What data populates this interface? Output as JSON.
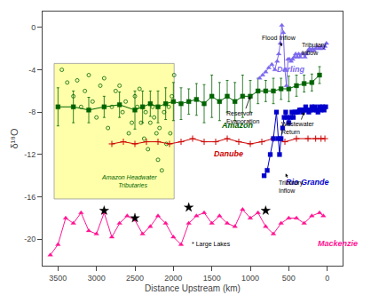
{
  "chart_data": {
    "type": "line",
    "xlabel": "Distance Upstream (km)",
    "ylabel": "δ¹⁸O",
    "xlim": [
      3700,
      -200
    ],
    "ylim": [
      -22.5,
      1.5
    ],
    "xticks": [
      3500,
      3000,
      2500,
      2000,
      1500,
      1000,
      500,
      0
    ],
    "yticks": [
      0,
      -4,
      -8,
      -12,
      -16,
      -20
    ],
    "grid": false,
    "region": {
      "x": [
        1990,
        3550
      ],
      "y": [
        -16.2,
        -3.4
      ],
      "color": "#ffffaa",
      "edge_color": "#999999"
    },
    "series": [
      {
        "name": "Amazon Headwater\n    Tributaries",
        "type": "scatter",
        "marker": "circle-open",
        "color": "#006400",
        "x": [
          3450,
          3380,
          3300,
          3250,
          3200,
          3150,
          3100,
          3050,
          3000,
          2950,
          2900,
          2850,
          2800,
          2750,
          2700,
          2660,
          2620,
          2580,
          2540,
          2500,
          2470,
          2440,
          2420,
          2400,
          2380,
          2360,
          2330,
          2300,
          2270,
          2250,
          2220,
          2200,
          2180,
          2150,
          2120,
          2090,
          2060,
          2040,
          2020,
          1990
        ],
        "values": [
          -4.0,
          -5.2,
          -6.5,
          -5.0,
          -7.5,
          -6.0,
          -4.5,
          -7.0,
          -8.5,
          -5.5,
          -4.8,
          -9.5,
          -7.5,
          -6.0,
          -5.5,
          -8.0,
          -7.0,
          -10.0,
          -9.0,
          -6.5,
          -7.5,
          -5.8,
          -9.0,
          -7.5,
          -10.5,
          -8.0,
          -11.5,
          -9.0,
          -7.5,
          -8.5,
          -10.0,
          -12.5,
          -9.5,
          -13.5,
          -8.0,
          -11.0,
          -7.5,
          -10.0,
          -6.5,
          -4.5
        ],
        "label_x": 2580,
        "label_y": -14.5
      },
      {
        "name": "Amazon",
        "type": "line",
        "marker": "square",
        "color": "#006400",
        "x": [
          3500,
          3300,
          3100,
          2900,
          2700,
          2500,
          2400,
          2300,
          2200,
          2100,
          2000,
          1900,
          1800,
          1700,
          1600,
          1500,
          1400,
          1300,
          1200,
          1100,
          1000,
          900,
          800,
          700,
          600,
          500,
          400,
          300,
          200,
          100
        ],
        "values": [
          -7.5,
          -7.5,
          -7.8,
          -7.5,
          -7.3,
          -7.8,
          -7.5,
          -7.2,
          -7.5,
          -7.2,
          -7.0,
          -7.2,
          -7.0,
          -6.8,
          -7.2,
          -6.5,
          -7.0,
          -6.5,
          -7.0,
          -6.5,
          -6.5,
          -6.0,
          -6.0,
          -6.0,
          -5.8,
          -5.8,
          -5.5,
          -5.3,
          -5.2,
          -4.5
        ],
        "errors": [
          1.8,
          1.5,
          1.2,
          1.0,
          1.2,
          1.8,
          1.5,
          1.2,
          1.5,
          1.5,
          1.8,
          1.5,
          1.2,
          1.5,
          1.8,
          2.0,
          1.8,
          1.5,
          1.8,
          2.0,
          1.5,
          1.2,
          1.0,
          1.2,
          1.0,
          1.2,
          1.0,
          0.8,
          0.8,
          0.8
        ],
        "label_x": 1400,
        "label_y": -9.8
      },
      {
        "name": "Danube",
        "type": "line",
        "marker": "cross",
        "color": "#cc0000",
        "x": [
          2800,
          2650,
          2500,
          2350,
          2200,
          2050,
          1900,
          1750,
          1600,
          1450,
          1300,
          1150,
          1000,
          850,
          700,
          550,
          400,
          250,
          150,
          80,
          30
        ],
        "values": [
          -11.0,
          -10.8,
          -11.0,
          -10.8,
          -10.8,
          -11.0,
          -10.8,
          -10.5,
          -10.8,
          -10.8,
          -10.5,
          -10.8,
          -11.0,
          -10.8,
          -10.5,
          -10.8,
          -10.5,
          -10.5,
          -10.5,
          -10.5,
          -10.5
        ],
        "label_x": 1500,
        "label_y": -12.5
      },
      {
        "name": "Rio Grande",
        "type": "line",
        "marker": "square",
        "color": "#0000cc",
        "x": [
          820,
          780,
          740,
          700,
          660,
          640,
          620,
          600,
          580,
          560,
          540,
          520,
          500,
          480,
          460,
          440,
          420,
          400,
          380,
          360,
          340,
          320,
          300,
          280,
          260,
          240,
          220,
          200,
          180,
          160,
          140,
          120,
          100,
          80,
          60,
          40,
          20
        ],
        "values": [
          -14.0,
          -13.5,
          -12.0,
          -10.5,
          -8.0,
          -10.5,
          -12.0,
          -10.5,
          -9.5,
          -8.5,
          -8.0,
          -8.5,
          -9.0,
          -8.5,
          -8.0,
          -8.5,
          -8.0,
          -8.0,
          -8.0,
          -7.8,
          -7.8,
          -8.0,
          -7.8,
          -7.5,
          -7.8,
          -8.0,
          -7.8,
          -7.5,
          -7.8,
          -7.5,
          -7.8,
          -8.0,
          -7.5,
          -7.8,
          -7.5,
          -7.8,
          -7.5
        ],
        "label_x": 560,
        "label_y": -15.2
      },
      {
        "name": "Darling",
        "type": "line",
        "marker": "triangle-up",
        "color": "#7B68EE",
        "x": [
          880,
          840,
          800,
          760,
          720,
          680,
          650,
          630,
          610,
          590,
          570,
          550,
          530,
          510,
          490,
          470,
          450,
          430,
          410,
          390,
          370,
          350,
          330,
          310,
          290,
          270,
          250,
          230,
          210,
          190,
          170,
          150,
          130,
          110,
          90,
          70,
          50,
          30,
          10
        ],
        "values": [
          -4.8,
          -4.5,
          -4.2,
          -3.8,
          -3.5,
          -4.0,
          -3.2,
          -2.5,
          -1.5,
          0.2,
          -0.5,
          -4.0,
          -5.5,
          -3.0,
          -3.0,
          -3.2,
          -3.0,
          -2.8,
          -2.5,
          -2.8,
          -2.5,
          -2.8,
          -2.5,
          -2.5,
          -2.8,
          -2.5,
          -2.2,
          -2.0,
          -2.2,
          -2.0,
          -2.2,
          -2.0,
          -1.8,
          -2.0,
          -2.0,
          -1.8,
          -2.0,
          -1.8,
          -1.5
        ],
        "label_x": 680,
        "label_y": -4.5
      },
      {
        "name": "Mackenzie",
        "type": "line",
        "marker": "triangle-up",
        "color": "#ff1493",
        "x": [
          3600,
          3500,
          3400,
          3300,
          3200,
          3100,
          3000,
          2900,
          2800,
          2700,
          2600,
          2500,
          2400,
          2300,
          2200,
          2100,
          2000,
          1900,
          1800,
          1700,
          1600,
          1500,
          1400,
          1300,
          1200,
          1100,
          1000,
          900,
          800,
          700,
          600,
          500,
          400,
          300,
          200,
          100,
          50
        ],
        "values": [
          -21.5,
          -20.5,
          -18.0,
          -18.5,
          -17.5,
          -19.2,
          -19.5,
          -17.5,
          -19.8,
          -18.5,
          -17.8,
          -18.2,
          -19.5,
          -18.8,
          -17.8,
          -18.5,
          -19.8,
          -20.5,
          -18.5,
          -17.8,
          -17.5,
          -18.5,
          -17.8,
          -18.5,
          -18.8,
          -17.2,
          -18.0,
          -17.5,
          -18.8,
          -19.5,
          -18.5,
          -18.0,
          -18.0,
          -18.5,
          -17.8,
          -17.5,
          -17.8
        ],
        "label_x": 150,
        "label_y": -21.0
      },
      {
        "name": "* Large Lakes",
        "type": "scatter",
        "marker": "star",
        "color": "#000000",
        "x": [
          2900,
          2500,
          1800,
          800
        ],
        "values": [
          -17.3,
          -18.0,
          -17.0,
          -17.3
        ],
        "label_x": 1780,
        "label_y": -21.0
      }
    ],
    "annotations": [
      {
        "text": "Flood Inflow",
        "x": 590,
        "y": -1.8,
        "text_x": 630,
        "text_y": -1.0
      },
      {
        "text": "Tributary\nInflow",
        "x": 130,
        "y": -2.8,
        "text_x": 175,
        "text_y": -2.0
      },
      {
        "text": "Reservoir\nEvaporation",
        "x": 1000,
        "y": -6.5,
        "text_x": 1100,
        "text_y": -8.5
      },
      {
        "text": "Wastewater\nReturn",
        "x": 300,
        "y": -8.0,
        "text_x": 380,
        "text_y": -9.5
      },
      {
        "text": "Tributary\nInflow",
        "x": 540,
        "y": -13.8,
        "text_x": 470,
        "text_y": -15.0
      }
    ]
  }
}
